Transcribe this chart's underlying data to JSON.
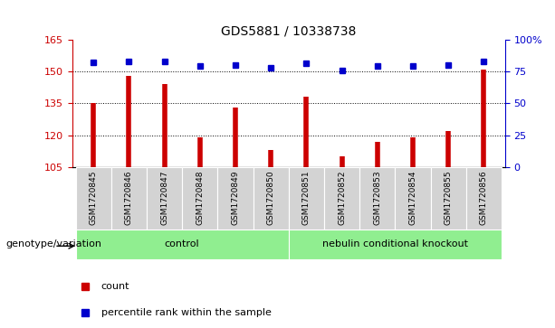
{
  "title": "GDS5881 / 10338738",
  "samples": [
    "GSM1720845",
    "GSM1720846",
    "GSM1720847",
    "GSM1720848",
    "GSM1720849",
    "GSM1720850",
    "GSM1720851",
    "GSM1720852",
    "GSM1720853",
    "GSM1720854",
    "GSM1720855",
    "GSM1720856"
  ],
  "bar_values": [
    135,
    148,
    144,
    119,
    133,
    113,
    138,
    110,
    117,
    119,
    122,
    151
  ],
  "dot_values": [
    82,
    83,
    83,
    79,
    80,
    78,
    81,
    76,
    79,
    79,
    80,
    83
  ],
  "bar_color": "#cc0000",
  "dot_color": "#0000cc",
  "left_ylim": [
    105,
    165
  ],
  "left_yticks": [
    105,
    120,
    135,
    150,
    165
  ],
  "right_ylim": [
    0,
    100
  ],
  "right_yticks": [
    0,
    25,
    50,
    75,
    100
  ],
  "right_yticklabels": [
    "0",
    "25",
    "50",
    "75",
    "100%"
  ],
  "group_defs": [
    {
      "label": "control",
      "start": 0,
      "end": 5,
      "color": "#90ee90"
    },
    {
      "label": "nebulin conditional knockout",
      "start": 6,
      "end": 11,
      "color": "#90ee90"
    }
  ],
  "group_row_label": "genotype/variation",
  "legend_items": [
    {
      "label": "count",
      "color": "#cc0000"
    },
    {
      "label": "percentile rank within the sample",
      "color": "#0000cc"
    }
  ],
  "tick_label_color_left": "#cc0000",
  "tick_label_color_right": "#0000cc",
  "bar_width": 0.35,
  "background_color": "#ffffff",
  "sample_bg_color": "#d3d3d3",
  "title_fontsize": 10,
  "label_fontsize": 6.5,
  "group_fontsize": 8,
  "legend_fontsize": 8
}
